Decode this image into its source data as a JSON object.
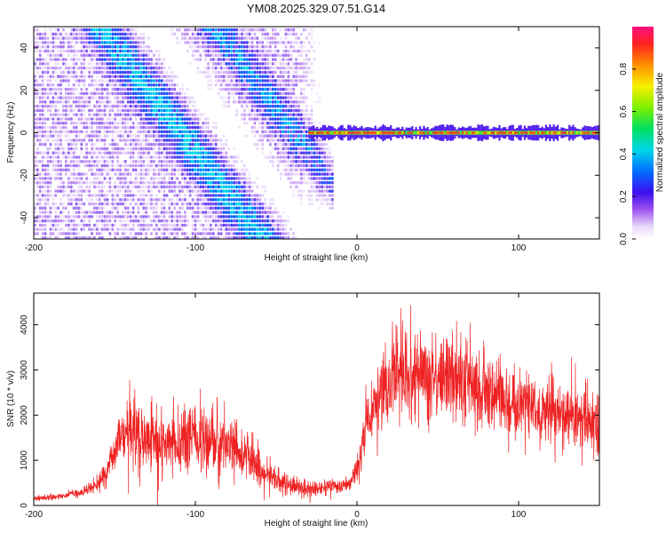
{
  "figure_title": "YM08.2025.329.07.51.G14",
  "colors": {
    "snr_line": "#ee2222",
    "axis": "#000000",
    "background": "#ffffff"
  },
  "chart_data": [
    {
      "type": "heatmap",
      "title": "",
      "xlabel": "Height of straight line (km)",
      "ylabel": "Frequency (Hz)",
      "xlim": [
        -200,
        150
      ],
      "ylim": [
        -50,
        50
      ],
      "xticks": [
        -200,
        -100,
        0,
        100
      ],
      "yticks": [
        -40,
        -20,
        0,
        20,
        40
      ],
      "colorbar": {
        "label": "Normalized spectral amplitude",
        "range": [
          0,
          1
        ],
        "ticks": [
          0.0,
          0.2,
          0.4,
          0.6,
          0.8
        ],
        "colormap": "rainbow-white-to-magenta"
      },
      "features": [
        {
          "name": "scattered noise region",
          "x_range": [
            -200,
            -15
          ],
          "freq_range": [
            -50,
            50
          ],
          "amplitude": 0.15
        },
        {
          "name": "descending diagonal band",
          "x_start": -160,
          "x_end": -60,
          "freq_start": 50,
          "freq_end": -50,
          "amplitude": 0.3
        },
        {
          "name": "zero-frequency line",
          "x_range": [
            -30,
            150
          ],
          "freq": 0,
          "amplitude": 0.95
        }
      ]
    },
    {
      "type": "line",
      "title": "",
      "xlabel": "Height of straight line (km)",
      "ylabel": "SNR (10 * v/v)",
      "xlim": [
        -200,
        150
      ],
      "ylim": [
        0,
        4700
      ],
      "xticks": [
        -200,
        -100,
        0,
        100
      ],
      "yticks": [
        0,
        1000,
        2000,
        3000,
        4000
      ],
      "series": [
        {
          "name": "SNR",
          "x": [
            -200,
            -190,
            -180,
            -170,
            -160,
            -155,
            -150,
            -145,
            -140,
            -135,
            -130,
            -120,
            -110,
            -100,
            -90,
            -80,
            -70,
            -60,
            -50,
            -40,
            -30,
            -20,
            -10,
            -5,
            0,
            5,
            10,
            20,
            25,
            30,
            40,
            50,
            60,
            70,
            80,
            90,
            100,
            110,
            120,
            130,
            140,
            150
          ],
          "y": [
            150,
            180,
            220,
            300,
            500,
            750,
            1100,
            1500,
            1800,
            1650,
            1450,
            1400,
            1500,
            1550,
            1450,
            1300,
            1100,
            800,
            550,
            450,
            400,
            380,
            420,
            500,
            800,
            1600,
            2200,
            2800,
            3100,
            3000,
            2850,
            2800,
            2850,
            2750,
            2600,
            2400,
            2250,
            2150,
            2050,
            2000,
            1950,
            1950
          ]
        }
      ]
    }
  ]
}
